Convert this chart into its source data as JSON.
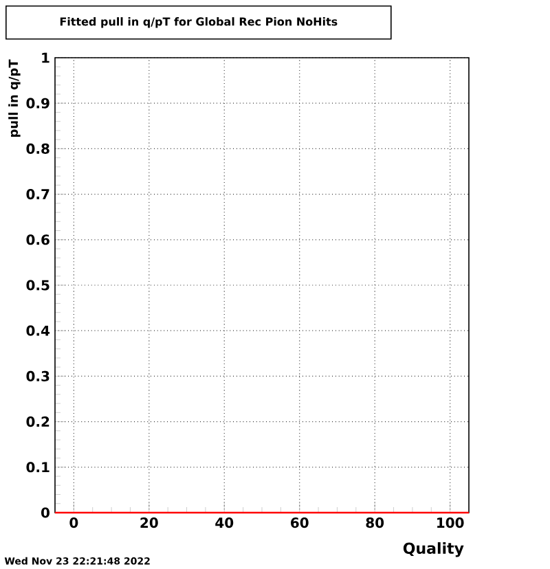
{
  "chart_data": {
    "type": "line",
    "title": "Fitted pull in q/pT for Global Rec Pion NoHits",
    "xlabel": "Quality",
    "ylabel": "pull in q/pT",
    "annotations": [
      "Wed Nov 23 22:21:48 2022"
    ],
    "series": [
      {
        "color": "#ff0000",
        "x": [
          -5,
          105
        ],
        "values": [
          0,
          0
        ]
      }
    ],
    "xlim": [
      -5,
      105
    ],
    "ylim": [
      0,
      1
    ],
    "xticks": [
      0,
      20,
      40,
      60,
      80,
      100
    ],
    "yticks": [
      0,
      0.1,
      0.2,
      0.3,
      0.4,
      0.5,
      0.6,
      0.7,
      0.8,
      0.9,
      1
    ],
    "grid": true,
    "marker": "none",
    "line_style": "solid",
    "legend": false
  }
}
